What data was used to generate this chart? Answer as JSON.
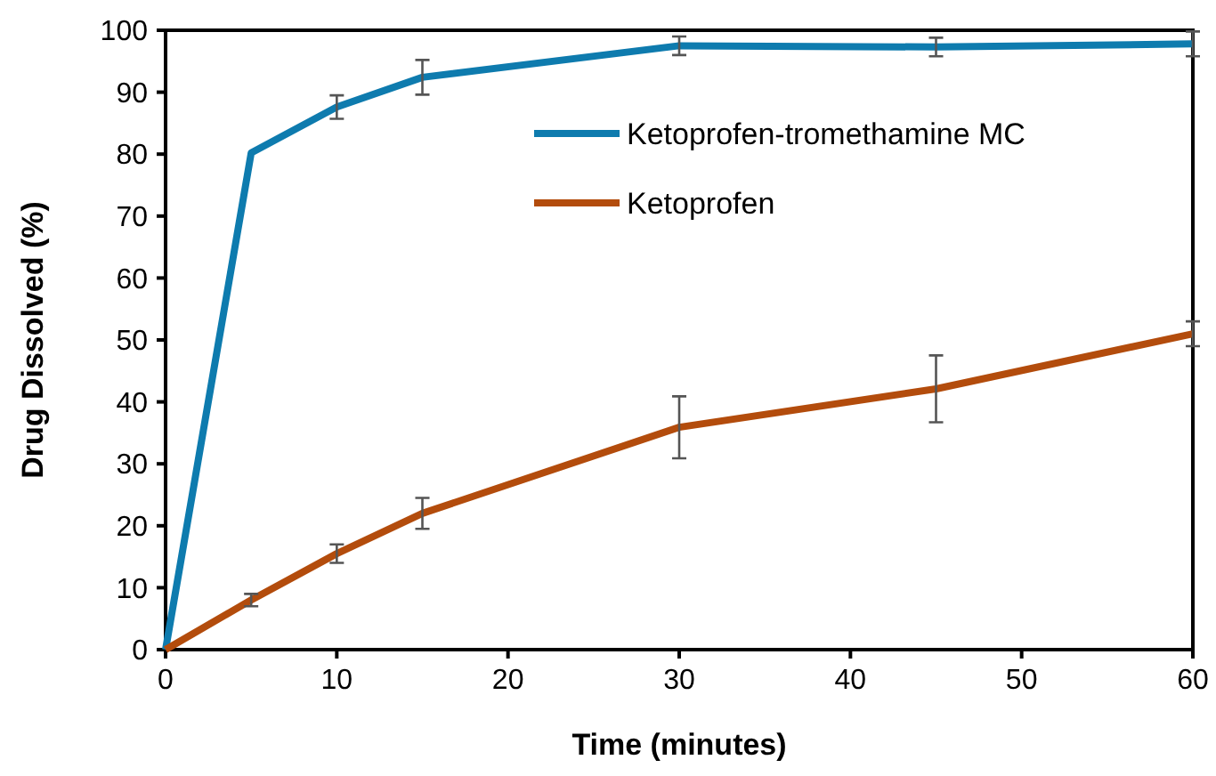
{
  "chart_data": {
    "type": "line",
    "xlabel": "Time (minutes)",
    "ylabel": "Drug Dissolved (%)",
    "x": [
      0,
      5,
      10,
      15,
      30,
      45,
      60
    ],
    "series": [
      {
        "name": "Ketoprofen-tromethamine MC",
        "color": "#0e7bae",
        "values": [
          0,
          80.2,
          87.6,
          92.4,
          97.5,
          97.3,
          97.8
        ],
        "errors": [
          null,
          null,
          1.9,
          2.8,
          1.5,
          1.5,
          2
        ]
      },
      {
        "name": "Ketoprofen",
        "color": "#b34c0c",
        "values": [
          0,
          8,
          15.5,
          22,
          35.9,
          42.1,
          51
        ],
        "errors": [
          null,
          1,
          1.5,
          2.5,
          5,
          5.4,
          2
        ]
      }
    ],
    "xlim": [
      0,
      60
    ],
    "xticks": [
      0,
      10,
      20,
      30,
      40,
      50,
      60
    ],
    "ylim": [
      0,
      100
    ],
    "yticks": [
      0,
      10,
      20,
      30,
      40,
      50,
      60,
      70,
      80,
      90,
      100
    ],
    "grid": false,
    "legend": "top right",
    "marker": "none",
    "line_style": "solid"
  }
}
